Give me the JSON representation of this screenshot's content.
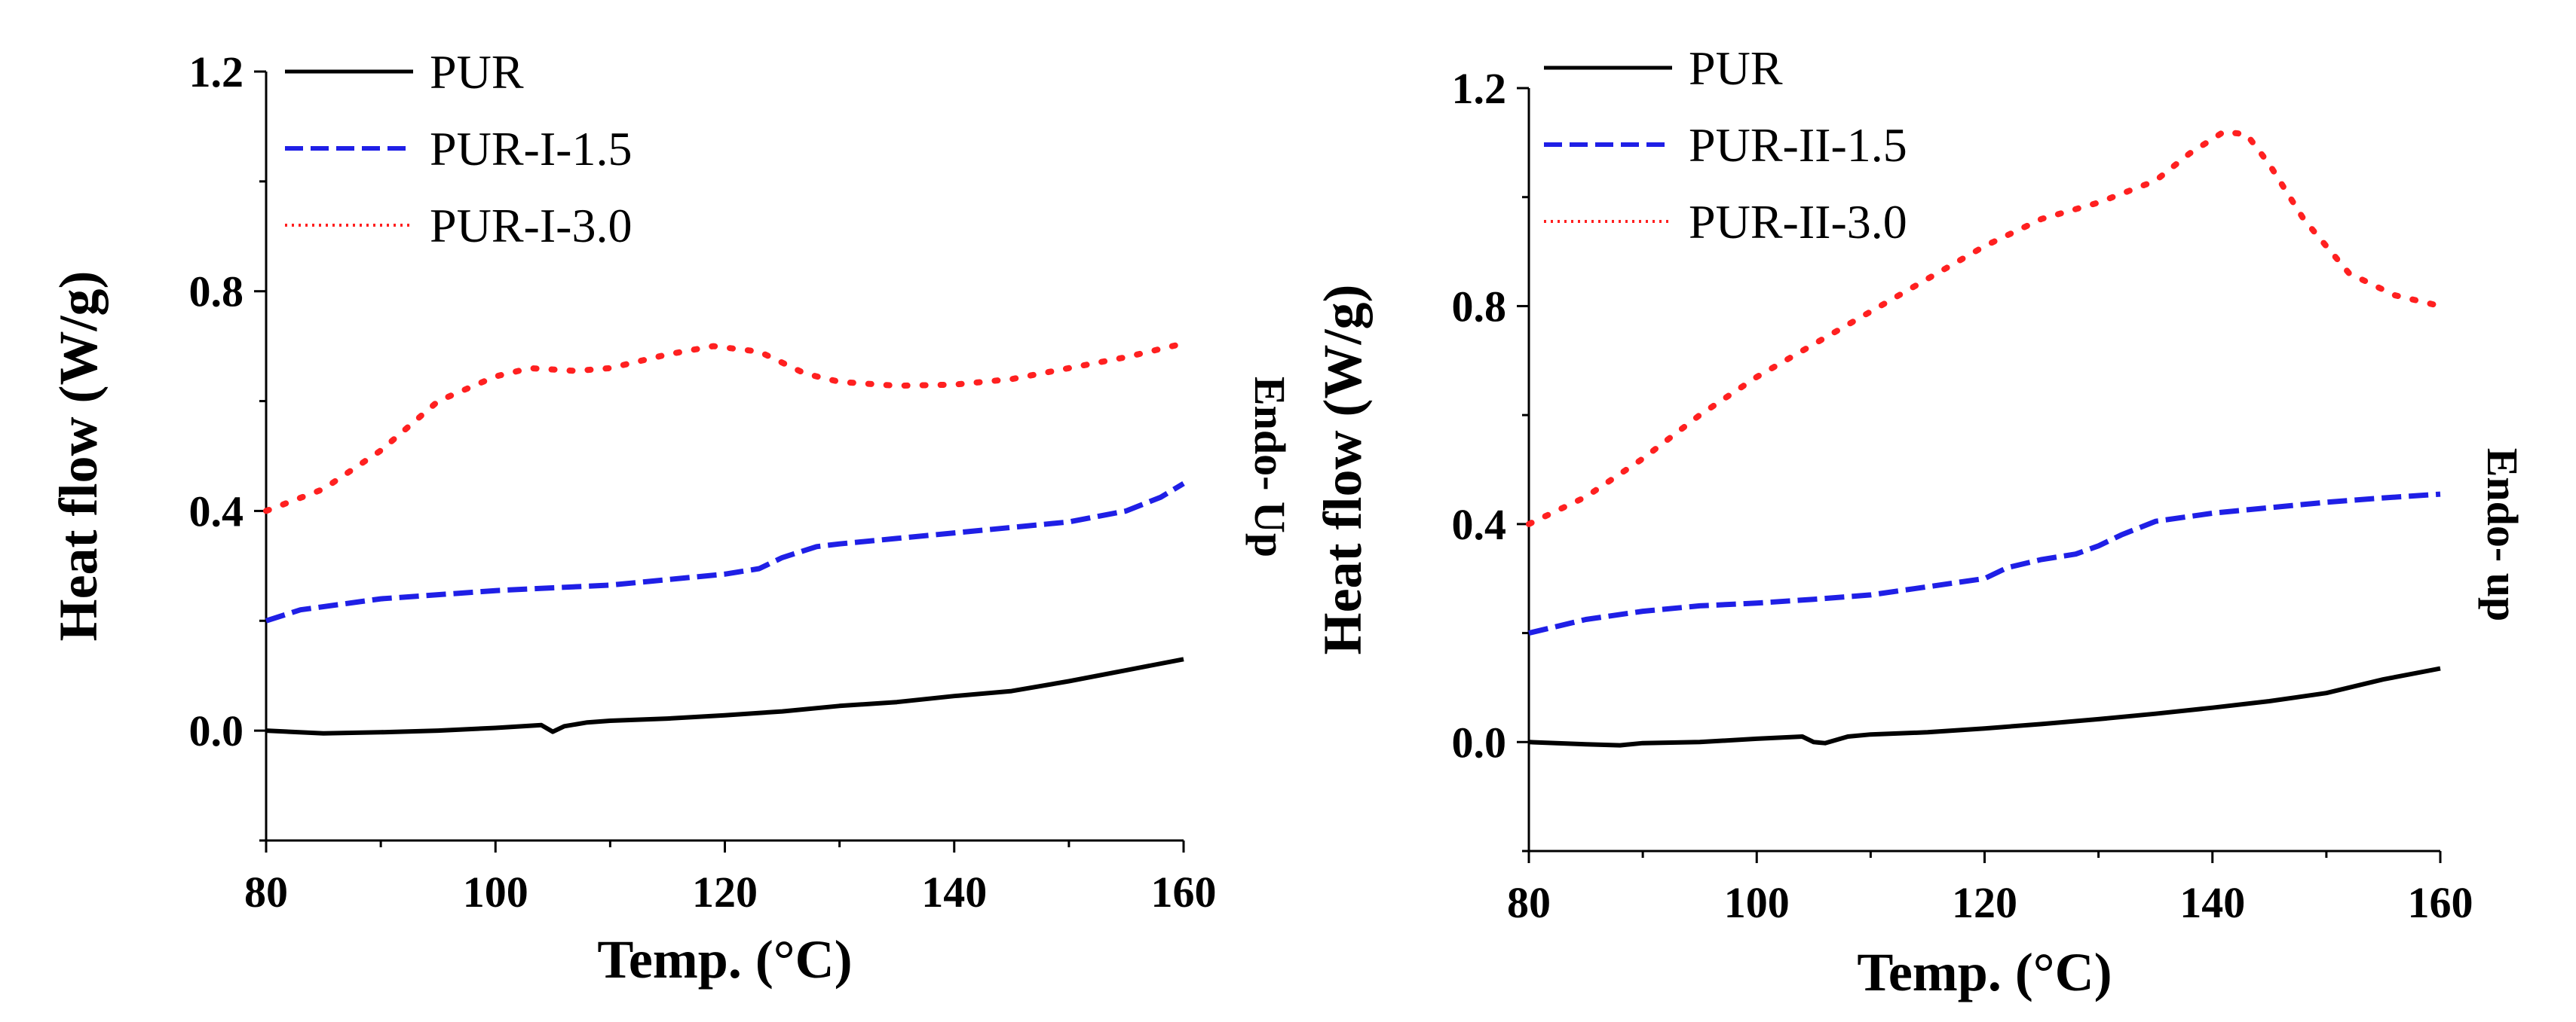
{
  "chart_data": [
    {
      "type": "line",
      "xlabel": "Temp. (°C)",
      "ylabel": "Heat flow (W/g)",
      "annotation": "Endo- Up",
      "xlim": [
        80,
        160
      ],
      "ylim": [
        -0.2,
        1.2
      ],
      "xticks": [
        "80",
        "100",
        "120",
        "140",
        "160"
      ],
      "yticks": [
        "0.0",
        "0.4",
        "0.8",
        "1.2"
      ],
      "legend_position": "top-left",
      "series": [
        {
          "name": "PUR",
          "color": "#000000",
          "style": "solid",
          "x": [
            80,
            85,
            90,
            95,
            100,
            104,
            105,
            106,
            108,
            110,
            115,
            120,
            125,
            130,
            135,
            140,
            145,
            150,
            155,
            160
          ],
          "y": [
            0.0,
            -0.005,
            -0.003,
            0.0,
            0.005,
            0.01,
            -0.002,
            0.008,
            0.015,
            0.018,
            0.022,
            0.028,
            0.035,
            0.045,
            0.052,
            0.063,
            0.072,
            0.09,
            0.11,
            0.13
          ]
        },
        {
          "name": "PUR-I-1.5",
          "color": "#1f1fe6",
          "style": "dashed",
          "x": [
            80,
            83,
            90,
            100,
            105,
            110,
            115,
            120,
            123,
            125,
            128,
            130,
            135,
            140,
            145,
            150,
            155,
            158,
            160
          ],
          "y": [
            0.2,
            0.22,
            0.24,
            0.255,
            0.26,
            0.265,
            0.275,
            0.285,
            0.295,
            0.315,
            0.335,
            0.34,
            0.35,
            0.36,
            0.37,
            0.38,
            0.4,
            0.425,
            0.45
          ]
        },
        {
          "name": "PUR-I-3.0",
          "color": "#ff2020",
          "style": "dotted",
          "x": [
            80,
            85,
            90,
            95,
            100,
            103,
            107,
            110,
            115,
            119,
            123,
            127,
            130,
            135,
            140,
            145,
            150,
            155,
            160
          ],
          "y": [
            0.4,
            0.44,
            0.51,
            0.6,
            0.645,
            0.66,
            0.655,
            0.66,
            0.685,
            0.7,
            0.69,
            0.65,
            0.635,
            0.628,
            0.63,
            0.64,
            0.66,
            0.68,
            0.705
          ]
        }
      ]
    },
    {
      "type": "line",
      "xlabel": "Temp. (°C)",
      "ylabel": "Heat flow (W/g)",
      "annotation": "Endo- up",
      "xlim": [
        80,
        160
      ],
      "ylim": [
        -0.2,
        1.2
      ],
      "xticks": [
        "80",
        "100",
        "120",
        "140",
        "160"
      ],
      "yticks": [
        "0.0",
        "0.4",
        "0.8",
        "1.2"
      ],
      "legend_position": "top-left",
      "series": [
        {
          "name": "PUR",
          "color": "#000000",
          "style": "solid",
          "x": [
            80,
            85,
            88,
            90,
            95,
            100,
            104,
            105,
            106,
            108,
            110,
            115,
            120,
            125,
            130,
            135,
            140,
            145,
            150,
            155,
            160
          ],
          "y": [
            0.0,
            -0.004,
            -0.006,
            -0.002,
            0.0,
            0.006,
            0.01,
            0.0,
            -0.002,
            0.01,
            0.014,
            0.018,
            0.025,
            0.033,
            0.042,
            0.052,
            0.063,
            0.075,
            0.09,
            0.115,
            0.135
          ]
        },
        {
          "name": "PUR-II-1.5",
          "color": "#1f1fe6",
          "style": "dashed",
          "x": [
            80,
            85,
            90,
            95,
            100,
            105,
            110,
            115,
            120,
            122,
            125,
            128,
            130,
            132,
            135,
            140,
            145,
            150,
            155,
            160
          ],
          "y": [
            0.2,
            0.225,
            0.24,
            0.25,
            0.255,
            0.262,
            0.27,
            0.285,
            0.3,
            0.32,
            0.335,
            0.345,
            0.36,
            0.38,
            0.405,
            0.42,
            0.43,
            0.44,
            0.448,
            0.455
          ]
        },
        {
          "name": "PUR-II-3.0",
          "color": "#ff2020",
          "style": "dotted",
          "x": [
            80,
            85,
            90,
            95,
            100,
            105,
            110,
            115,
            120,
            125,
            130,
            135,
            138,
            141,
            143,
            145,
            148,
            152,
            156,
            160
          ],
          "y": [
            0.4,
            0.45,
            0.52,
            0.6,
            0.67,
            0.73,
            0.79,
            0.85,
            0.91,
            0.96,
            0.99,
            1.03,
            1.08,
            1.12,
            1.115,
            1.06,
            0.96,
            0.86,
            0.82,
            0.8
          ]
        }
      ]
    }
  ]
}
